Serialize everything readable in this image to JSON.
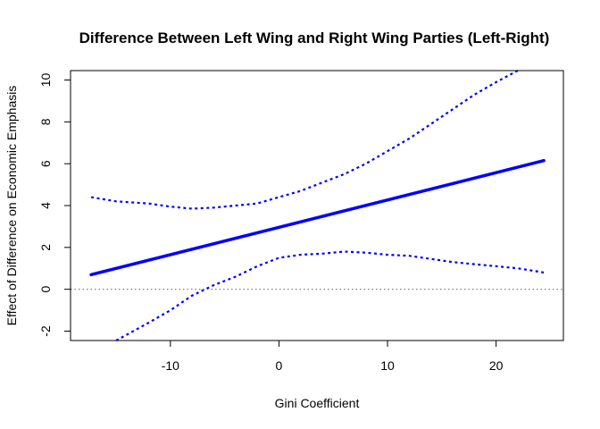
{
  "chart_data": {
    "type": "line",
    "title": "Difference Between Left Wing and Right Wing Parties (Left-Right)",
    "xlabel": "Gini Coefficient",
    "ylabel": "Effect of Difference on Economic Emphasis",
    "xlim": [
      -19.2,
      26.2
    ],
    "ylim": [
      -2.45,
      10.45
    ],
    "x_ticks": [
      -10,
      0,
      10,
      20
    ],
    "y_ticks": [
      -2,
      0,
      2,
      4,
      6,
      8,
      10
    ],
    "x_tick_labels": [
      "-10",
      "0",
      "10",
      "20"
    ],
    "y_tick_labels": [
      "-2",
      "0",
      "2",
      "4",
      "6",
      "8",
      "10"
    ],
    "grid": false,
    "reference_line": {
      "y": 0,
      "style": "dotted",
      "color": "#808080"
    },
    "series": [
      {
        "role": "estimate",
        "style": "solid",
        "color": "#0000ff",
        "x": [
          -17.3,
          24.4
        ],
        "y": [
          0.7,
          6.15
        ]
      },
      {
        "role": "upper_bound",
        "style": "dashed",
        "color": "#0000ff",
        "x": [
          -17.3,
          -15,
          -12,
          -10,
          -8,
          -6,
          -4,
          -2,
          0,
          2,
          4,
          6,
          8,
          10,
          12,
          14,
          16,
          18,
          20,
          22
        ],
        "y": [
          4.4,
          4.2,
          4.1,
          3.95,
          3.85,
          3.9,
          4.0,
          4.1,
          4.4,
          4.7,
          5.1,
          5.5,
          6.0,
          6.6,
          7.2,
          7.9,
          8.6,
          9.3,
          9.9,
          10.45
        ]
      },
      {
        "role": "lower_bound",
        "style": "dashed",
        "color": "#0000ff",
        "x": [
          -15,
          -12,
          -10,
          -8,
          -6,
          -4,
          -2,
          0,
          2,
          4,
          6,
          8,
          10,
          12,
          14,
          16,
          18,
          20,
          22,
          24.4
        ],
        "y": [
          -2.45,
          -1.6,
          -1.0,
          -0.3,
          0.2,
          0.6,
          1.1,
          1.5,
          1.65,
          1.7,
          1.8,
          1.75,
          1.65,
          1.6,
          1.45,
          1.3,
          1.2,
          1.1,
          1.0,
          0.8
        ]
      }
    ]
  }
}
